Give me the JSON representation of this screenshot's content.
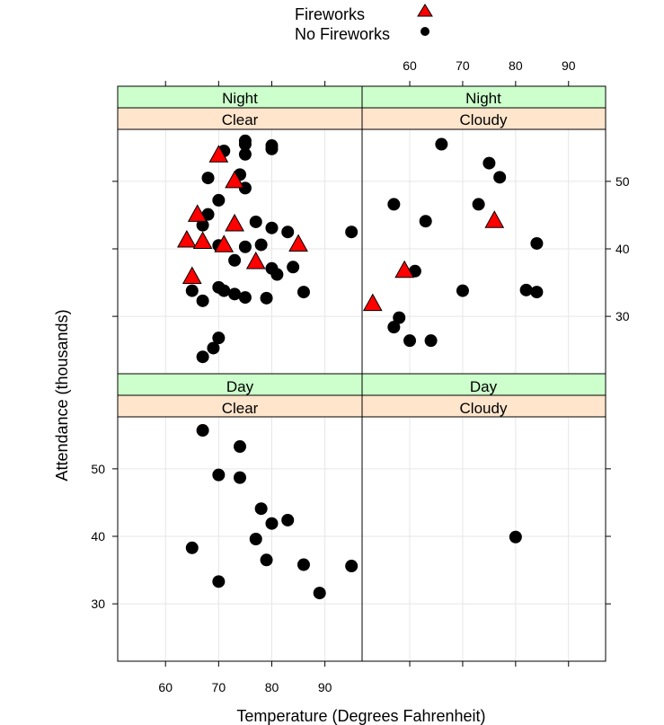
{
  "chart_data": {
    "type": "scatter",
    "xlabel": "Temperature (Degrees Fahrenheit)",
    "ylabel": "Attendance (thousands)",
    "xlim": [
      51,
      97
    ],
    "ylim": [
      21.5,
      57.7
    ],
    "x_ticks": [
      60,
      70,
      80,
      90
    ],
    "y_ticks": [
      30,
      40,
      50
    ],
    "grid": true,
    "legend": {
      "placement": "top",
      "entries": [
        {
          "name": "Fireworks",
          "marker": "triangle",
          "color": "#ff0000"
        },
        {
          "name": "No Fireworks",
          "marker": "circle",
          "color": "#000000"
        }
      ]
    },
    "panels": [
      {
        "time": "Night",
        "sky": "Clear",
        "series": [
          {
            "name": "Fireworks",
            "points": [
              [
                70,
                53.8
              ],
              [
                73,
                50
              ],
              [
                66,
                45
              ],
              [
                64,
                41.2
              ],
              [
                67,
                41
              ],
              [
                71,
                40.5
              ],
              [
                73,
                43.6
              ],
              [
                77,
                38
              ],
              [
                85,
                40.6
              ],
              [
                65,
                35.8
              ]
            ]
          },
          {
            "name": "No Fireworks",
            "points": [
              [
                71,
                54.5
              ],
              [
                75,
                56
              ],
              [
                75,
                55.5
              ],
              [
                75,
                54
              ],
              [
                80,
                55.3
              ],
              [
                80,
                54.8
              ],
              [
                68,
                50.5
              ],
              [
                74,
                51
              ],
              [
                75,
                49
              ],
              [
                70,
                47.2
              ],
              [
                68,
                45.1
              ],
              [
                67,
                43.5
              ],
              [
                77,
                44
              ],
              [
                80,
                43.1
              ],
              [
                83,
                42.5
              ],
              [
                95,
                42.5
              ],
              [
                70,
                40.5
              ],
              [
                75,
                40.3
              ],
              [
                78,
                40.6
              ],
              [
                73,
                38.3
              ],
              [
                80,
                37.1
              ],
              [
                81,
                36.2
              ],
              [
                84,
                37.3
              ],
              [
                65,
                33.8
              ],
              [
                70,
                34.3
              ],
              [
                71,
                33.8
              ],
              [
                73,
                33.3
              ],
              [
                75,
                32.8
              ],
              [
                79,
                32.7
              ],
              [
                86,
                33.6
              ],
              [
                67,
                32.3
              ],
              [
                70,
                26.8
              ],
              [
                69,
                25.3
              ],
              [
                67,
                24
              ]
            ]
          }
        ]
      },
      {
        "time": "Night",
        "sky": "Cloudy",
        "series": [
          {
            "name": "Fireworks",
            "points": [
              [
                76,
                44.1
              ],
              [
                59,
                36.7
              ],
              [
                53,
                31.8
              ]
            ]
          },
          {
            "name": "No Fireworks",
            "points": [
              [
                66,
                55.5
              ],
              [
                75,
                52.7
              ],
              [
                77,
                50.6
              ],
              [
                57,
                46.6
              ],
              [
                73,
                46.6
              ],
              [
                63,
                44.1
              ],
              [
                84,
                40.8
              ],
              [
                61,
                36.7
              ],
              [
                70,
                33.8
              ],
              [
                82,
                33.9
              ],
              [
                84,
                33.6
              ],
              [
                58,
                29.8
              ],
              [
                57,
                28.4
              ],
              [
                60,
                26.4
              ],
              [
                64,
                26.4
              ]
            ]
          }
        ]
      },
      {
        "time": "Day",
        "sky": "Clear",
        "series": [
          {
            "name": "Fireworks",
            "points": []
          },
          {
            "name": "No Fireworks",
            "points": [
              [
                67,
                55.7
              ],
              [
                74,
                53.3
              ],
              [
                70,
                49.1
              ],
              [
                74,
                48.7
              ],
              [
                78,
                44.1
              ],
              [
                83,
                42.4
              ],
              [
                80,
                41.9
              ],
              [
                77,
                39.6
              ],
              [
                65,
                38.3
              ],
              [
                79,
                36.5
              ],
              [
                86,
                35.8
              ],
              [
                95,
                35.6
              ],
              [
                70,
                33.3
              ],
              [
                89,
                31.6
              ]
            ]
          }
        ]
      },
      {
        "time": "Day",
        "sky": "Cloudy",
        "series": [
          {
            "name": "Fireworks",
            "points": []
          },
          {
            "name": "No Fireworks",
            "points": [
              [
                80,
                39.9
              ]
            ]
          }
        ]
      }
    ]
  }
}
